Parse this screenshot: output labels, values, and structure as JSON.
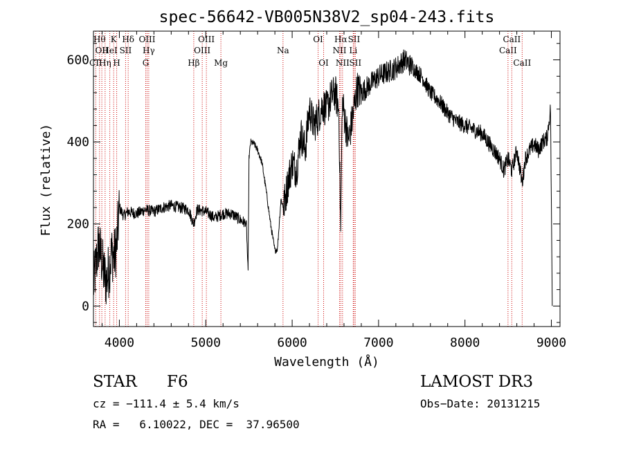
{
  "chart_data": {
    "type": "line",
    "title": "spec-56642-VB005N38V2_sp04-243.fits",
    "xlabel": "Wavelength (Å)",
    "ylabel": "Flux (relative)",
    "xlim": [
      3700,
      9100
    ],
    "ylim": [
      -50,
      670
    ],
    "x_ticks": [
      4000,
      5000,
      6000,
      7000,
      8000,
      9000
    ],
    "y_ticks": [
      0,
      200,
      400,
      600
    ],
    "line_color": "#000000",
    "marker_color": "#cc0000",
    "spectrum_anchors": {
      "x": [
        3700,
        3730,
        3760,
        3790,
        3820,
        3850,
        3880,
        3910,
        3940,
        3970,
        4000,
        4050,
        4100,
        4200,
        4300,
        4400,
        4500,
        4600,
        4700,
        4800,
        4860,
        4900,
        5000,
        5100,
        5200,
        5300,
        5400,
        5470,
        5490,
        5500,
        5520,
        5560,
        5600,
        5650,
        5700,
        5750,
        5800,
        5830,
        5870,
        5900,
        5950,
        6000,
        6050,
        6100,
        6150,
        6200,
        6250,
        6300,
        6350,
        6400,
        6450,
        6500,
        6540,
        6562,
        6580,
        6600,
        6650,
        6700,
        6750,
        6800,
        6900,
        7000,
        7100,
        7200,
        7300,
        7400,
        7500,
        7600,
        7700,
        7800,
        7900,
        8000,
        8100,
        8200,
        8300,
        8400,
        8450,
        8498,
        8542,
        8600,
        8662,
        8700,
        8750,
        8800,
        8850,
        8900,
        8950,
        8990,
        9000,
        9010
      ],
      "y": [
        50,
        100,
        150,
        120,
        80,
        60,
        90,
        130,
        120,
        150,
        240,
        220,
        230,
        225,
        235,
        230,
        240,
        245,
        240,
        235,
        200,
        235,
        230,
        215,
        225,
        225,
        210,
        200,
        80,
        360,
        400,
        395,
        380,
        350,
        280,
        200,
        135,
        140,
        260,
        240,
        300,
        350,
        330,
        420,
        380,
        480,
        440,
        460,
        490,
        480,
        510,
        520,
        480,
        180,
        500,
        470,
        400,
        460,
        530,
        520,
        540,
        560,
        570,
        580,
        600,
        580,
        560,
        520,
        500,
        470,
        450,
        440,
        430,
        420,
        390,
        360,
        330,
        360,
        330,
        380,
        300,
        360,
        380,
        395,
        380,
        400,
        410,
        480,
        250,
        0
      ]
    },
    "line_markers": [
      {
        "name": "CII",
        "wavelength": 3727,
        "row": 3
      },
      {
        "name": "Hθ",
        "wavelength": 3770,
        "row": 1
      },
      {
        "name": "OII",
        "wavelength": 3797,
        "row": 2
      },
      {
        "name": "Hη",
        "wavelength": 3835,
        "row": 3
      },
      {
        "name": "HeI",
        "wavelength": 3889,
        "row": 2
      },
      {
        "name": "K",
        "wavelength": 3934,
        "row": 1
      },
      {
        "name": "H",
        "wavelength": 3969,
        "row": 3
      },
      {
        "name": "SII",
        "wavelength": 4072,
        "row": 2
      },
      {
        "name": "Hδ",
        "wavelength": 4102,
        "row": 1
      },
      {
        "name": "G",
        "wavelength": 4305,
        "row": 3
      },
      {
        "name": "OIII",
        "wavelength": 4321,
        "row": 1
      },
      {
        "name": "Hγ",
        "wavelength": 4340,
        "row": 2
      },
      {
        "name": "Hβ",
        "wavelength": 4861,
        "row": 3
      },
      {
        "name": "OIII",
        "wavelength": 4959,
        "row": 2
      },
      {
        "name": "OIII",
        "wavelength": 5007,
        "row": 1
      },
      {
        "name": "Mg",
        "wavelength": 5175,
        "row": 3
      },
      {
        "name": "Na",
        "wavelength": 5894,
        "row": 2
      },
      {
        "name": "OI",
        "wavelength": 6300,
        "row": 1
      },
      {
        "name": "OI",
        "wavelength": 6364,
        "row": 3
      },
      {
        "name": "NII",
        "wavelength": 6548,
        "row": 2
      },
      {
        "name": "Hα",
        "wavelength": 6563,
        "row": 1
      },
      {
        "name": "NII",
        "wavelength": 6583,
        "row": 3
      },
      {
        "name": "Li",
        "wavelength": 6707,
        "row": 2
      },
      {
        "name": "SII",
        "wavelength": 6716,
        "row": 1
      },
      {
        "name": "SII",
        "wavelength": 6731,
        "row": 3
      },
      {
        "name": "CaII",
        "wavelength": 8498,
        "row": 2
      },
      {
        "name": "CaII",
        "wavelength": 8542,
        "row": 1
      },
      {
        "name": "CaII",
        "wavelength": 8662,
        "row": 3
      }
    ]
  },
  "info": {
    "class": "STAR",
    "subclass": "F6",
    "survey": "LAMOST DR3",
    "cz": "cz = −111.4 ± 5.4 km/s",
    "obs_date": "Obs−Date: 20131215",
    "coords": "RA =   6.10022, DEC =  37.96500"
  }
}
